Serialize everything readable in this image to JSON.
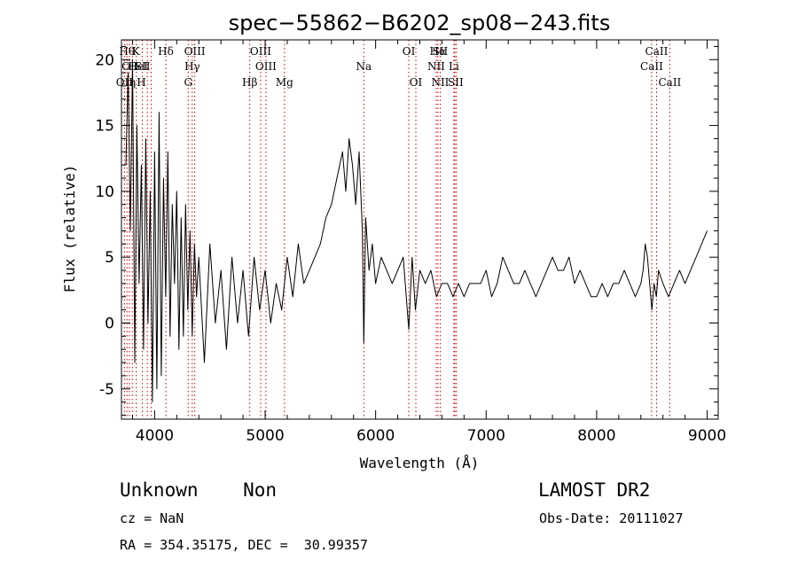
{
  "chart_data": {
    "type": "line",
    "title": "spec−55862−B6202_sp08−243.fits",
    "xlabel": "Wavelength (Å)",
    "ylabel": "Flux (relative)",
    "xlim": [
      3700,
      9100
    ],
    "ylim": [
      -7.3,
      21.5
    ],
    "x_ticks": [
      4000,
      5000,
      6000,
      7000,
      8000,
      9000
    ],
    "y_ticks": [
      -5,
      0,
      5,
      10,
      15,
      20
    ],
    "grid": false,
    "series": [
      {
        "x": [
          3740,
          3760,
          3780,
          3800,
          3820,
          3840,
          3860,
          3880,
          3900,
          3920,
          3940,
          3960,
          3980,
          4000,
          4020,
          4040,
          4060,
          4080,
          4100,
          4120,
          4140,
          4160,
          4180,
          4200,
          4220,
          4240,
          4260,
          4280,
          4300,
          4320,
          4340,
          4360,
          4380,
          4400,
          4450,
          4500,
          4550,
          4600,
          4650,
          4700,
          4750,
          4800,
          4850,
          4900,
          4950,
          5000,
          5050,
          5100,
          5150,
          5200,
          5250,
          5300,
          5350,
          5400,
          5450,
          5500,
          5550,
          5600,
          5650,
          5700,
          5730,
          5760,
          5790,
          5820,
          5850,
          5880,
          5893,
          5910,
          5940,
          5970,
          6000,
          6050,
          6100,
          6150,
          6200,
          6250,
          6300,
          6330,
          6360,
          6400,
          6450,
          6500,
          6550,
          6600,
          6650,
          6700,
          6750,
          6800,
          6850,
          6900,
          6950,
          7000,
          7050,
          7100,
          7150,
          7200,
          7250,
          7300,
          7350,
          7400,
          7450,
          7500,
          7550,
          7600,
          7650,
          7700,
          7750,
          7800,
          7850,
          7900,
          7950,
          8000,
          8050,
          8100,
          8150,
          8200,
          8250,
          8300,
          8350,
          8400,
          8420,
          8440,
          8460,
          8480,
          8500,
          8520,
          8540,
          8560,
          8600,
          8650,
          8700,
          8750,
          8800,
          8850,
          8900,
          8950,
          9000
        ],
        "y": [
          12,
          19,
          7,
          20,
          -3,
          15,
          3,
          12,
          -2,
          14,
          0,
          10,
          -6,
          13,
          -5,
          16,
          -4,
          11,
          2,
          13,
          -1,
          9,
          3,
          10,
          -2,
          8,
          -1,
          9,
          1,
          7,
          -1,
          6,
          2,
          5,
          -3,
          6,
          0,
          4,
          -2,
          5,
          0,
          4,
          -1,
          5,
          1,
          4,
          0,
          3,
          1,
          5,
          2,
          6,
          3,
          4,
          5,
          6,
          8,
          9,
          11,
          13,
          10,
          14,
          12,
          9,
          13,
          7,
          -1.5,
          8,
          4,
          6,
          3,
          5,
          4,
          3,
          4,
          5,
          -0.5,
          5,
          1,
          4,
          3,
          4,
          2,
          3,
          3,
          2,
          3,
          2,
          3,
          3,
          3,
          4,
          2,
          3,
          5,
          4,
          3,
          3,
          4,
          3,
          2,
          3,
          4,
          5,
          4,
          4,
          5,
          3,
          4,
          3,
          2,
          2,
          3,
          2,
          3,
          3,
          4,
          3,
          2,
          3,
          4,
          6,
          5,
          3,
          1,
          3,
          2,
          4,
          3,
          2,
          3,
          4,
          3,
          4,
          5,
          6,
          7
        ]
      }
    ],
    "line_labels": [
      {
        "wave": 3750,
        "label": "Hθ",
        "row": 0
      },
      {
        "wave": 3780,
        "label": "OII",
        "row": 1
      },
      {
        "wave": 3727,
        "label": "OII",
        "row": 2
      },
      {
        "wave": 3800,
        "label": "η",
        "row": 2
      },
      {
        "wave": 3830,
        "label": "K",
        "row": 0
      },
      {
        "wave": 3850,
        "label": "HeI",
        "row": 1
      },
      {
        "wave": 3890,
        "label": "SII",
        "row": 1
      },
      {
        "wave": 3880,
        "label": "H",
        "row": 2
      },
      {
        "wave": 4101,
        "label": "Hδ",
        "row": 0
      },
      {
        "wave": 4363,
        "label": "OIII",
        "row": 0
      },
      {
        "wave": 4340,
        "label": "Hγ",
        "row": 1
      },
      {
        "wave": 4304,
        "label": "G",
        "row": 2
      },
      {
        "wave": 4959,
        "label": "OIII",
        "row": 0
      },
      {
        "wave": 5007,
        "label": "OIII",
        "row": 1
      },
      {
        "wave": 4861,
        "label": "Hβ",
        "row": 2
      },
      {
        "wave": 5175,
        "label": "Mg",
        "row": 2
      },
      {
        "wave": 5893,
        "label": "Na",
        "row": 1
      },
      {
        "wave": 6300,
        "label": "OI",
        "row": 0
      },
      {
        "wave": 6364,
        "label": "OI",
        "row": 2
      },
      {
        "wave": 6563,
        "label": "Hα",
        "row": 0
      },
      {
        "wave": 6584,
        "label": "SII",
        "row": 0
      },
      {
        "wave": 6548,
        "label": "NII",
        "row": 1
      },
      {
        "wave": 6708,
        "label": "Li",
        "row": 1
      },
      {
        "wave": 6584,
        "label": "NII",
        "row": 2
      },
      {
        "wave": 6724,
        "label": "SII",
        "row": 2
      },
      {
        "wave": 8542,
        "label": "CaII",
        "row": 0
      },
      {
        "wave": 8498,
        "label": "CaII",
        "row": 1
      },
      {
        "wave": 8662,
        "label": "CaII",
        "row": 2
      }
    ],
    "line_marker_waves": [
      3727,
      3750,
      3771,
      3798,
      3835,
      3889,
      3934,
      3968,
      4102,
      4304,
      4340,
      4363,
      4861,
      4959,
      5007,
      5175,
      5893,
      6300,
      6364,
      6548,
      6563,
      6584,
      6708,
      6717,
      6731,
      8498,
      8542,
      8662
    ]
  },
  "info": {
    "class_label": "Unknown    Non",
    "survey_label": "LAMOST DR2",
    "cz": "cz = NaN",
    "obs_date": "Obs-Date: 20111027",
    "coords": "RA = 354.35175, DEC =  30.99357"
  },
  "colors": {
    "marker": "#cc0000",
    "line": "#000000",
    "axis": "#000000"
  }
}
